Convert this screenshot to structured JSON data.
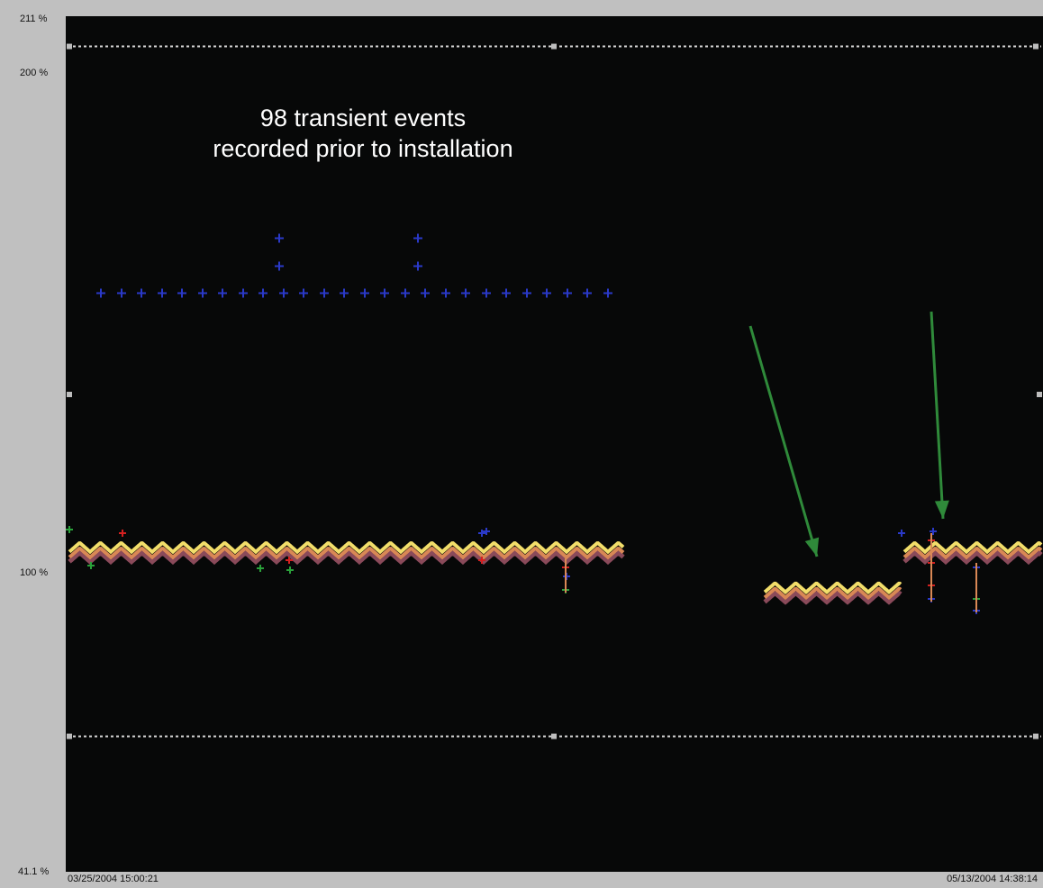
{
  "chart_data": {
    "type": "scatter",
    "title": "",
    "xlabel": "",
    "ylabel": "",
    "x_start_label": "03/25/2004 15:00:21",
    "x_end_label": "05/13/2004 14:38:14",
    "y_ticks": [
      {
        "value": 211,
        "label": "211 %"
      },
      {
        "value": 200,
        "label": "200 %"
      },
      {
        "value": 100,
        "label": "100 %"
      },
      {
        "value": 41.1,
        "label": "41.1 %"
      }
    ],
    "ylim": [
      41.1,
      211
    ],
    "limit_lines": [
      205,
      68
    ],
    "annotation": [
      "98 transient events",
      "recorded prior to installation"
    ],
    "colors": {
      "background": "#070808",
      "frame": "#c0c0c0",
      "transient": "#2a39c8",
      "upper_band": "#f2de6a",
      "mid_band": "#d98855",
      "lower_band": "#8a4a5a",
      "red_marker": "#d42020",
      "green_marker": "#2aa03a",
      "arrow": "#2f8a3a",
      "limit_line": "#d8d8d8"
    },
    "series": [
      {
        "segment": "before",
        "baseline_percent": 105,
        "transient_percent": 156
      },
      {
        "segment": "after-1",
        "baseline_percent": 97
      },
      {
        "segment": "after-2",
        "baseline_percent": 105
      }
    ]
  }
}
